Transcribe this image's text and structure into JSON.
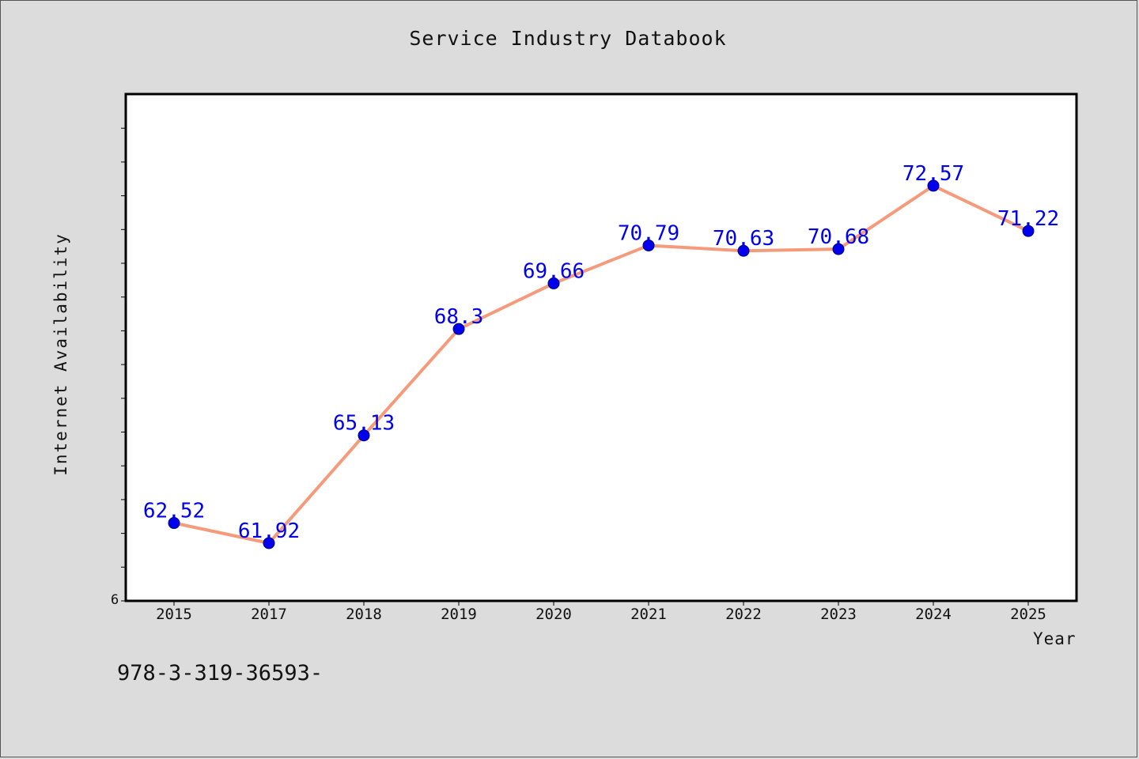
{
  "chart_data": {
    "type": "line",
    "title": "Service Industry Databook",
    "xlabel": "Year",
    "ylabel": "Internet Availability",
    "categories": [
      "2015",
      "2017",
      "2018",
      "2019",
      "2020",
      "2021",
      "2022",
      "2023",
      "2024",
      "2025"
    ],
    "series": [
      {
        "values": [
          62.52,
          61.92,
          65.13,
          68.3,
          69.66,
          70.79,
          70.63,
          70.68,
          72.57,
          71.22
        ],
        "data_labels": [
          "62.52",
          "61.92",
          "65.13",
          "68.3",
          "69.66",
          "70.79",
          "70.63",
          "70.68",
          "72.57",
          "71.22"
        ],
        "line_color": "#f59a7a",
        "marker_color": "#0000ee"
      }
    ],
    "ylim": [
      60.2,
      75.3
    ],
    "y_tick_label": "6",
    "grid": false,
    "legend": "none",
    "label_color": "#0000ee"
  },
  "footer": {
    "text": "978-3-319-36593-"
  }
}
